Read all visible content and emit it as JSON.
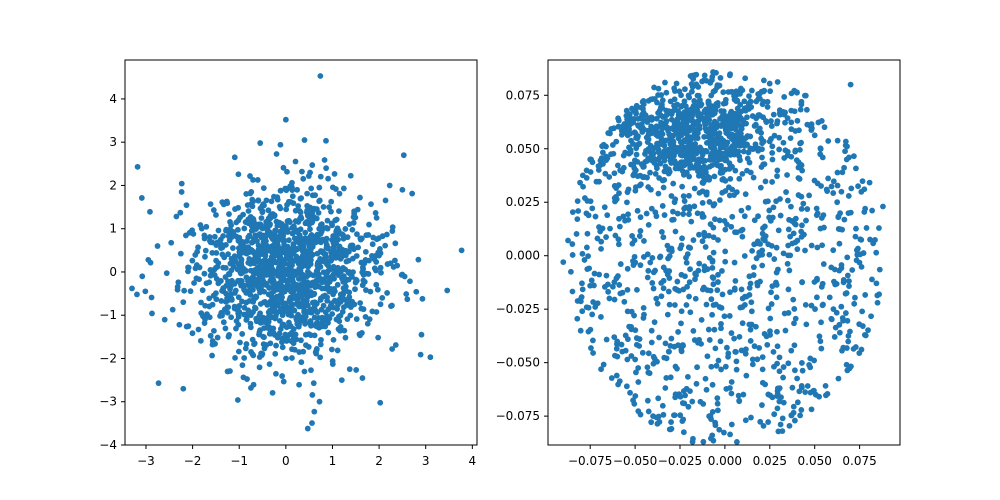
{
  "colors": {
    "points": "#1f77b4",
    "frame": "#000000",
    "background": "#ffffff"
  },
  "chart_data": [
    {
      "type": "scatter",
      "title": "",
      "xlabel": "",
      "ylabel": "",
      "grid": false,
      "xlim": [
        -3.45,
        4.1
      ],
      "ylim": [
        -4.0,
        4.9
      ],
      "xticks": [
        -3,
        -2,
        -1,
        0,
        1,
        2,
        3,
        4
      ],
      "xtick_labels": [
        "−3",
        "−2",
        "−1",
        "0",
        "1",
        "2",
        "3",
        "4"
      ],
      "yticks": [
        -4,
        -3,
        -2,
        -1,
        0,
        1,
        2,
        3,
        4
      ],
      "ytick_labels": [
        "−4",
        "−3",
        "−2",
        "−1",
        "0",
        "1",
        "2",
        "3",
        "4"
      ],
      "distribution": "approximately standard normal in x and y, about 1500 points",
      "points": [
        [
          0.74,
          4.53
        ],
        [
          0.0,
          3.52
        ],
        [
          -3.18,
          2.43
        ],
        [
          3.77,
          0.5
        ],
        [
          3.1,
          -1.97
        ],
        [
          0.47,
          -3.62
        ],
        [
          -1.03,
          -2.96
        ],
        [
          -2.73,
          -2.57
        ],
        [
          -2.2,
          -2.7
        ],
        [
          2.53,
          2.7
        ],
        [
          0.4,
          3.05
        ],
        [
          -0.55,
          2.98
        ],
        [
          2.5,
          1.9
        ],
        [
          -3.3,
          -0.38
        ],
        [
          -3.08,
          -0.1
        ],
        [
          -2.95,
          0.28
        ],
        [
          2.93,
          -0.62
        ],
        [
          2.28,
          -1.78
        ],
        [
          -1.25,
          -2.3
        ],
        [
          1.2,
          -2.5
        ]
      ]
    },
    {
      "type": "scatter",
      "title": "",
      "xlabel": "",
      "ylabel": "",
      "grid": false,
      "xlim": [
        -0.0985,
        0.0975
      ],
      "ylim": [
        -0.0885,
        0.0915
      ],
      "xticks": [
        -0.075,
        -0.05,
        -0.025,
        0.0,
        0.025,
        0.05,
        0.075
      ],
      "xtick_labels": [
        "−0.075",
        "−0.050",
        "−0.025",
        "0.000",
        "0.025",
        "0.050",
        "0.075"
      ],
      "yticks": [
        -0.075,
        -0.05,
        -0.025,
        0.0,
        0.025,
        0.05,
        0.075
      ],
      "ytick_labels": [
        "−0.075",
        "−0.050",
        "−0.025",
        "0.000",
        "0.025",
        "0.050",
        "0.075"
      ],
      "distribution": "points inside a disk of radius about 0.088 centred at (0, 0), dense cluster near (-0.02, 0.055)",
      "points": [
        [
          -0.012,
          -0.087
        ],
        [
          -0.018,
          -0.087
        ],
        [
          0.032,
          -0.082
        ],
        [
          0.085,
          -0.022
        ],
        [
          0.088,
          0.023
        ],
        [
          -0.09,
          -0.003
        ],
        [
          0.07,
          0.08
        ],
        [
          -0.04,
          -0.075
        ],
        [
          0.064,
          -0.036
        ],
        [
          -0.075,
          0.045
        ]
      ]
    }
  ]
}
